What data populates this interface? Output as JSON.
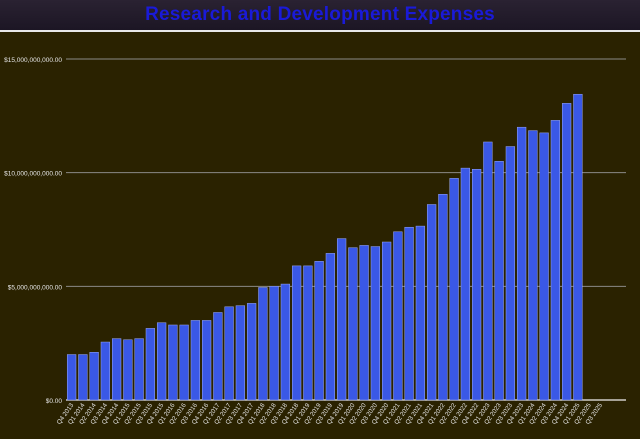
{
  "chart_data": {
    "type": "bar",
    "title": "Research and Development Expenses",
    "xlabel": "",
    "ylabel": "",
    "ylim": [
      0,
      15000000000
    ],
    "yticks": [
      0,
      5000000000,
      10000000000,
      15000000000
    ],
    "ytick_labels": [
      "$0.00",
      "$5,000,000,000.00",
      "$10,000,000,000.00",
      "$15,000,000,000.00"
    ],
    "grid": true,
    "bar_color": "#3a58e6",
    "categories": [
      "Q4 2013",
      "Q1 2014",
      "Q2 2014",
      "Q3 2014",
      "Q4 2014",
      "Q1 2015",
      "Q2 2015",
      "Q3 2015",
      "Q4 2015",
      "Q1 2016",
      "Q2 2016",
      "Q3 2016",
      "Q4 2016",
      "Q1 2017",
      "Q2 2017",
      "Q3 2017",
      "Q4 2017",
      "Q1 2018",
      "Q2 2018",
      "Q3 2018",
      "Q4 2018",
      "Q1 2019",
      "Q2 2019",
      "Q3 2019",
      "Q4 2019",
      "Q1 2020",
      "Q2 2020",
      "Q3 2020",
      "Q4 2020",
      "Q1 2021",
      "Q2 2021",
      "Q3 2021",
      "Q4 2021",
      "Q1 2022",
      "Q2 2022",
      "Q3 2022",
      "Q4 2022",
      "Q1 2023",
      "Q2 2023",
      "Q3 2023",
      "Q4 2023",
      "Q1 2024",
      "Q2 2024",
      "Q3 2024",
      "Q4 2024",
      "Q1 2025",
      "Q2 2025",
      "Q3 2025"
    ],
    "values": [
      2000000000,
      2000000000,
      2100000000,
      2550000000,
      2700000000,
      2650000000,
      2700000000,
      3150000000,
      3400000000,
      3300000000,
      3300000000,
      3500000000,
      3500000000,
      3850000000,
      4100000000,
      4150000000,
      4250000000,
      4950000000,
      5000000000,
      5100000000,
      5900000000,
      5900000000,
      6100000000,
      6450000000,
      7100000000,
      6700000000,
      6800000000,
      6750000000,
      6950000000,
      7400000000,
      7600000000,
      7650000000,
      8600000000,
      9050000000,
      9750000000,
      10200000000,
      10150000000,
      11350000000,
      10500000000,
      11150000000,
      12000000000,
      11850000000,
      11750000000,
      12300000000,
      13050000000,
      13450000000,
      null,
      null
    ]
  }
}
